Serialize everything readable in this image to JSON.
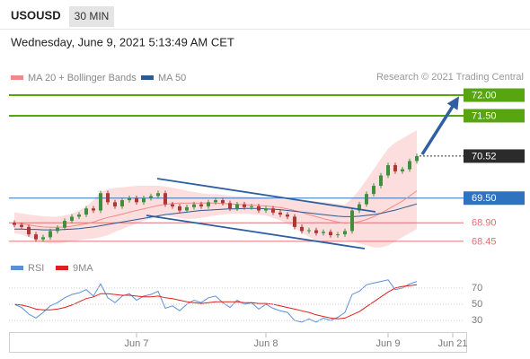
{
  "header": {
    "symbol": "USOUSD",
    "interval": "30 MIN",
    "timestamp": "Wednesday, June 9, 2021 5:13:49 AM CET"
  },
  "chart_data": [
    {
      "type": "candlestick",
      "source": "Research © 2021 Trading Central",
      "ylim": [
        68.1,
        72.24
      ],
      "up_color": "#3f8f3f",
      "down_color": "#b03535",
      "open": [
        68.9,
        68.85,
        68.8,
        68.62,
        68.5,
        68.55,
        68.7,
        68.78,
        68.95,
        69.05,
        69.1,
        69.25,
        69.2,
        69.62,
        69.4,
        69.3,
        69.45,
        69.5,
        69.4,
        69.5,
        69.55,
        69.62,
        69.35,
        69.3,
        69.2,
        69.28,
        69.35,
        69.3,
        69.4,
        69.45,
        69.38,
        69.25,
        69.35,
        69.28,
        69.3,
        69.2,
        69.25,
        69.15,
        69.1,
        69.05,
        68.8,
        68.7,
        68.72,
        68.65,
        68.68,
        68.6,
        68.62,
        68.7,
        69.2,
        69.35,
        69.6,
        69.8,
        70.05,
        70.3,
        70.15,
        70.2,
        70.4
      ],
      "high": [
        68.96,
        68.91,
        68.86,
        68.68,
        68.61,
        68.76,
        68.84,
        69.01,
        69.11,
        69.16,
        69.31,
        69.31,
        69.68,
        69.68,
        69.46,
        69.51,
        69.56,
        69.56,
        69.56,
        69.61,
        69.68,
        69.68,
        69.41,
        69.36,
        69.34,
        69.41,
        69.41,
        69.46,
        69.51,
        69.51,
        69.44,
        69.41,
        69.41,
        69.36,
        69.36,
        69.31,
        69.31,
        69.21,
        69.16,
        69.11,
        68.86,
        68.78,
        68.78,
        68.74,
        68.74,
        68.68,
        68.76,
        69.26,
        69.41,
        69.66,
        69.86,
        70.11,
        70.36,
        70.36,
        70.26,
        70.46,
        70.58
      ],
      "low": [
        68.79,
        68.74,
        68.56,
        68.44,
        68.44,
        68.49,
        68.64,
        68.72,
        68.89,
        68.99,
        69.04,
        69.14,
        69.14,
        69.34,
        69.24,
        69.24,
        69.39,
        69.34,
        69.34,
        69.44,
        69.49,
        69.29,
        69.24,
        69.14,
        69.14,
        69.22,
        69.24,
        69.24,
        69.34,
        69.32,
        69.19,
        69.19,
        69.22,
        69.22,
        69.14,
        69.14,
        69.09,
        69.04,
        68.99,
        68.74,
        68.64,
        68.64,
        68.59,
        68.59,
        68.54,
        68.54,
        68.56,
        68.64,
        69.14,
        69.29,
        69.54,
        69.74,
        69.99,
        70.09,
        70.09,
        70.14,
        70.34
      ],
      "close": [
        68.85,
        68.8,
        68.62,
        68.5,
        68.55,
        68.7,
        68.78,
        68.95,
        69.05,
        69.1,
        69.25,
        69.2,
        69.62,
        69.4,
        69.3,
        69.45,
        69.5,
        69.4,
        69.5,
        69.55,
        69.62,
        69.35,
        69.3,
        69.2,
        69.28,
        69.35,
        69.3,
        69.4,
        69.45,
        69.38,
        69.25,
        69.35,
        69.28,
        69.3,
        69.2,
        69.25,
        69.15,
        69.1,
        69.05,
        68.8,
        68.7,
        68.72,
        68.65,
        68.68,
        68.6,
        68.62,
        68.7,
        69.2,
        69.35,
        69.6,
        69.8,
        70.05,
        70.3,
        70.15,
        70.2,
        70.4,
        70.52
      ],
      "series": [
        {
          "name": "MA 20 + Bollinger Bands",
          "color": "#f08a8a",
          "band_color": "#fbd3d3",
          "values": [
            68.9,
            68.88,
            68.85,
            68.82,
            68.8,
            68.79,
            68.79,
            68.8,
            68.82,
            68.85,
            68.88,
            68.92,
            68.98,
            69.03,
            69.07,
            69.11,
            69.16,
            69.2,
            69.24,
            69.28,
            69.32,
            69.35,
            69.37,
            69.38,
            69.38,
            69.38,
            69.38,
            69.38,
            69.38,
            69.37,
            69.36,
            69.35,
            69.34,
            69.33,
            69.32,
            69.31,
            69.29,
            69.27,
            69.24,
            69.2,
            69.15,
            69.1,
            69.05,
            69.0,
            68.96,
            68.92,
            68.89,
            68.9,
            68.93,
            68.98,
            69.05,
            69.13,
            69.23,
            69.33,
            69.43,
            69.55,
            69.68
          ],
          "upper": [
            69.15,
            69.13,
            69.1,
            69.08,
            69.06,
            69.05,
            69.05,
            69.08,
            69.12,
            69.2,
            69.3,
            69.45,
            69.65,
            69.72,
            69.75,
            69.76,
            69.78,
            69.8,
            69.8,
            69.8,
            69.8,
            69.78,
            69.75,
            69.72,
            69.68,
            69.65,
            69.62,
            69.6,
            69.6,
            69.58,
            69.56,
            69.55,
            69.54,
            69.53,
            69.52,
            69.5,
            69.48,
            69.47,
            69.46,
            69.45,
            69.45,
            69.44,
            69.42,
            69.4,
            69.38,
            69.36,
            69.34,
            69.5,
            69.7,
            69.95,
            70.2,
            70.45,
            70.7,
            70.85,
            70.95,
            71.05,
            71.15
          ],
          "lower": [
            68.65,
            68.62,
            68.55,
            68.48,
            68.42,
            68.4,
            68.4,
            68.42,
            68.45,
            68.48,
            68.5,
            68.52,
            68.55,
            68.6,
            68.68,
            68.75,
            68.82,
            68.88,
            68.95,
            69.0,
            69.05,
            69.08,
            69.05,
            69.02,
            69.0,
            69.0,
            69.02,
            69.05,
            69.08,
            69.1,
            69.12,
            69.12,
            69.12,
            69.11,
            69.1,
            69.08,
            69.02,
            68.96,
            68.88,
            68.78,
            68.66,
            68.56,
            68.48,
            68.45,
            68.45,
            68.46,
            68.48,
            68.45,
            68.4,
            68.35,
            68.3,
            68.3,
            68.35,
            68.45,
            68.55,
            68.65,
            68.75
          ]
        },
        {
          "name": "MA 50",
          "color": "#2c5a92",
          "values": [
            68.75,
            68.75,
            68.74,
            68.74,
            68.73,
            68.73,
            68.73,
            68.74,
            68.75,
            68.76,
            68.78,
            68.8,
            68.83,
            68.86,
            68.89,
            68.92,
            68.95,
            68.98,
            69.01,
            69.04,
            69.07,
            69.1,
            69.12,
            69.14,
            69.16,
            69.18,
            69.2,
            69.21,
            69.22,
            69.23,
            69.24,
            69.24,
            69.25,
            69.25,
            69.25,
            69.24,
            69.23,
            69.22,
            69.2,
            69.18,
            69.16,
            69.14,
            69.12,
            69.1,
            69.08,
            69.06,
            69.05,
            69.05,
            69.06,
            69.08,
            69.1,
            69.13,
            69.17,
            69.21,
            69.26,
            69.31,
            69.36
          ]
        }
      ],
      "levels": [
        {
          "value": 72,
          "label": "72.00",
          "color": "#58a512",
          "line": "full",
          "style": "box"
        },
        {
          "value": 71.5,
          "label": "71.50",
          "color": "#58a512",
          "line": "full",
          "style": "box"
        },
        {
          "value": 70.52,
          "label": "70.52",
          "color": "#2b2b2b",
          "line": "from-last",
          "style": "box"
        },
        {
          "value": 69.5,
          "label": "69.50",
          "color": "#2f72c0",
          "line": "full",
          "style": "box"
        },
        {
          "value": 68.9,
          "label": "68.90",
          "color": "#e07070",
          "line": "full",
          "style": "text"
        },
        {
          "value": 68.45,
          "label": "68.45",
          "color": "#e07070",
          "line": "full",
          "style": "text"
        }
      ]
    },
    {
      "type": "line",
      "ylim": [
        18,
        82
      ],
      "yticks": [
        70,
        50,
        30
      ],
      "grid": true,
      "categories": [
        null,
        null,
        null,
        null,
        null,
        null,
        null,
        null,
        null,
        null,
        null,
        null,
        null,
        null,
        null,
        null,
        null,
        "Jun 7",
        null,
        null,
        null,
        null,
        null,
        null,
        null,
        null,
        null,
        null,
        null,
        null,
        null,
        null,
        null,
        null,
        null,
        "Jun 8",
        null,
        null,
        null,
        null,
        null,
        null,
        null,
        null,
        null,
        null,
        null,
        null,
        null,
        null,
        null,
        null,
        "Jun 9",
        null,
        null,
        null,
        null,
        null,
        null,
        null,
        null,
        "Jun 21",
        null
      ],
      "series": [
        {
          "name": "RSI",
          "color": "#5b8fd6",
          "values": [
            50,
            46,
            38,
            33,
            40,
            48,
            52,
            58,
            62,
            64,
            68,
            60,
            75,
            58,
            52,
            60,
            63,
            55,
            60,
            62,
            66,
            45,
            48,
            42,
            50,
            55,
            52,
            58,
            60,
            52,
            46,
            55,
            50,
            52,
            44,
            50,
            45,
            42,
            40,
            30,
            28,
            32,
            28,
            33,
            30,
            34,
            40,
            62,
            66,
            74,
            76,
            78,
            80,
            68,
            70,
            75,
            78,
            null,
            null,
            null,
            null,
            null,
            null
          ]
        },
        {
          "name": "9MA",
          "color": "#e02020",
          "values": [
            50,
            49,
            47,
            44,
            43,
            43,
            44,
            46,
            49,
            53,
            57,
            59,
            63,
            63,
            62,
            61,
            61,
            60,
            59,
            59,
            60,
            58,
            57,
            55,
            53,
            52,
            51,
            52,
            53,
            53,
            53,
            53,
            52,
            52,
            51,
            51,
            50,
            48,
            46,
            44,
            42,
            40,
            37,
            35,
            33,
            32,
            33,
            37,
            41,
            47,
            53,
            59,
            65,
            70,
            72,
            73,
            74,
            null,
            null,
            null,
            null,
            null,
            null
          ]
        }
      ]
    }
  ]
}
